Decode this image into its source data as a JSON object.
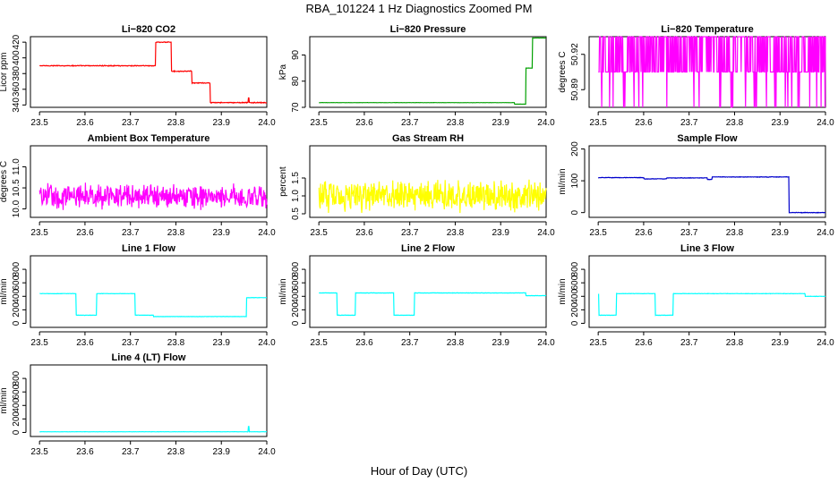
{
  "figure": {
    "title": "RBA_101224  1 Hz Diagnostics Zoomed PM",
    "xlabel": "Hour of Day (UTC)"
  },
  "chart_data": [
    {
      "type": "line",
      "title": "Li−820 CO2",
      "ylabel": "Licor ppm",
      "color": "#ff0000",
      "xlim": [
        23.48,
        24.0
      ],
      "ylim": [
        337,
        427
      ],
      "xticks": [
        "23.5",
        "23.6",
        "23.7",
        "23.8",
        "23.9",
        "24.0"
      ],
      "yticks": [
        {
          "v": 340,
          "label": "340"
        },
        {
          "v": 360,
          "label": "360"
        },
        {
          "v": 380,
          "label": "380"
        },
        {
          "v": 400,
          "label": "400"
        },
        {
          "v": 420,
          "label": "420"
        }
      ],
      "segments": [
        [
          23.5,
          23.755,
          390
        ],
        [
          23.755,
          23.79,
          420
        ],
        [
          23.79,
          23.835,
          383
        ],
        [
          23.835,
          23.875,
          368
        ],
        [
          23.875,
          24.0,
          343
        ]
      ],
      "noise": 0.6,
      "spikes": [
        [
          23.96,
          349
        ]
      ]
    },
    {
      "type": "line",
      "title": "Li−820 Pressure",
      "ylabel": "kPa",
      "color": "#00a000",
      "xlim": [
        23.48,
        24.0
      ],
      "ylim": [
        70,
        97
      ],
      "xticks": [
        "23.5",
        "23.6",
        "23.7",
        "23.8",
        "23.9",
        "24.0"
      ],
      "yticks": [
        {
          "v": 70,
          "label": "70"
        },
        {
          "v": 80,
          "label": "80"
        },
        {
          "v": 90,
          "label": "90"
        }
      ],
      "segments": [
        [
          23.5,
          23.93,
          71.8
        ],
        [
          23.93,
          23.955,
          71.2
        ],
        [
          23.955,
          23.97,
          85
        ],
        [
          23.97,
          24.0,
          96.5
        ]
      ],
      "noise": 0.05,
      "spikes": []
    },
    {
      "type": "line",
      "title": "Li−820 Temperature",
      "ylabel": "degrees C",
      "color": "#ff00ff",
      "xlim": [
        23.48,
        24.0
      ],
      "ylim": [
        50.875,
        50.935
      ],
      "xticks": [
        "23.5",
        "23.6",
        "23.7",
        "23.8",
        "23.9",
        "24.0"
      ],
      "yticks": [
        {
          "v": 50.89,
          "label": "50.89"
        },
        {
          "v": 50.92,
          "label": "50.92"
        }
      ],
      "digital": [
        50.905,
        50.935,
        50.875
      ],
      "noise": 0,
      "spikes": []
    },
    {
      "type": "line",
      "title": "Ambient Box Temperature",
      "ylabel": "degrees C",
      "color": "#ff00ff",
      "xlim": [
        23.48,
        24.0
      ],
      "ylim": [
        9.8,
        11.5
      ],
      "xticks": [
        "23.5",
        "23.6",
        "23.7",
        "23.8",
        "23.9",
        "24.0"
      ],
      "yticks": [
        {
          "v": 10.0,
          "label": "10.0"
        },
        {
          "v": 10.5,
          "label": "10.5"
        },
        {
          "v": 11.0,
          "label": "11.0"
        }
      ],
      "segments": [
        [
          23.5,
          24.0,
          10.3
        ]
      ],
      "noise": 0.35,
      "spikes": []
    },
    {
      "type": "line",
      "title": "Gas Stream RH",
      "ylabel": "percent",
      "color": "#ffff00",
      "xlim": [
        23.48,
        24.0
      ],
      "ylim": [
        0.4,
        2.4
      ],
      "xticks": [
        "23.5",
        "23.6",
        "23.7",
        "23.8",
        "23.9",
        "24.0"
      ],
      "yticks": [
        {
          "v": 0.5,
          "label": "0.5"
        },
        {
          "v": 1.0,
          "label": "1.0"
        },
        {
          "v": 1.5,
          "label": "1.5"
        }
      ],
      "segments": [
        [
          23.5,
          24.0,
          1.0
        ]
      ],
      "noise": 0.5,
      "spikes": []
    },
    {
      "type": "line",
      "title": "Sample Flow",
      "ylabel": "ml/min",
      "color": "#0000cc",
      "xlim": [
        23.48,
        24.0
      ],
      "ylim": [
        -15,
        210
      ],
      "xticks": [
        "23.5",
        "23.6",
        "23.7",
        "23.8",
        "23.9",
        "24.0"
      ],
      "yticks": [
        {
          "v": 0,
          "label": "0"
        },
        {
          "v": 100,
          "label": "100"
        },
        {
          "v": 200,
          "label": "200"
        }
      ],
      "segments": [
        [
          23.5,
          23.6,
          110
        ],
        [
          23.6,
          23.65,
          106
        ],
        [
          23.65,
          23.74,
          109
        ],
        [
          23.74,
          23.75,
          104
        ],
        [
          23.75,
          23.92,
          112
        ],
        [
          23.92,
          24.0,
          0
        ]
      ],
      "noise": 1.0,
      "spikes": []
    },
    {
      "type": "line",
      "title": "Line 1 Flow",
      "ylabel": "ml/min",
      "color": "#00ffff",
      "xlim": [
        23.48,
        24.0
      ],
      "ylim": [
        -60,
        1000
      ],
      "xticks": [
        "23.5",
        "23.6",
        "23.7",
        "23.8",
        "23.9",
        "24.0"
      ],
      "yticks": [
        {
          "v": 0,
          "label": "0"
        },
        {
          "v": 200,
          "label": "200"
        },
        {
          "v": 400,
          "label": "400"
        },
        {
          "v": 600,
          "label": "600"
        },
        {
          "v": 800,
          "label": "800"
        }
      ],
      "segments": [
        [
          23.5,
          23.58,
          440
        ],
        [
          23.58,
          23.625,
          120
        ],
        [
          23.625,
          23.71,
          440
        ],
        [
          23.71,
          23.75,
          120
        ],
        [
          23.75,
          23.955,
          100
        ],
        [
          23.955,
          24.0,
          380
        ]
      ],
      "noise": 3,
      "spikes": []
    },
    {
      "type": "line",
      "title": "Line 2 Flow",
      "ylabel": "ml/min",
      "color": "#00ffff",
      "xlim": [
        23.48,
        24.0
      ],
      "ylim": [
        -60,
        1000
      ],
      "xticks": [
        "23.5",
        "23.6",
        "23.7",
        "23.8",
        "23.9",
        "24.0"
      ],
      "yticks": [
        {
          "v": 0,
          "label": "0"
        },
        {
          "v": 200,
          "label": "200"
        },
        {
          "v": 400,
          "label": "400"
        },
        {
          "v": 600,
          "label": "600"
        },
        {
          "v": 800,
          "label": "800"
        }
      ],
      "segments": [
        [
          23.5,
          23.54,
          450
        ],
        [
          23.54,
          23.58,
          120
        ],
        [
          23.58,
          23.665,
          450
        ],
        [
          23.665,
          23.71,
          120
        ],
        [
          23.71,
          23.955,
          450
        ],
        [
          23.955,
          24.0,
          410
        ]
      ],
      "noise": 3,
      "spikes": []
    },
    {
      "type": "line",
      "title": "Line 3 Flow",
      "ylabel": "ml/min",
      "color": "#00ffff",
      "xlim": [
        23.48,
        24.0
      ],
      "ylim": [
        -60,
        1000
      ],
      "xticks": [
        "23.5",
        "23.6",
        "23.7",
        "23.8",
        "23.9",
        "24.0"
      ],
      "yticks": [
        {
          "v": 0,
          "label": "0"
        },
        {
          "v": 200,
          "label": "200"
        },
        {
          "v": 400,
          "label": "400"
        },
        {
          "v": 600,
          "label": "600"
        },
        {
          "v": 800,
          "label": "800"
        }
      ],
      "segments": [
        [
          23.5,
          23.54,
          120
        ],
        [
          23.54,
          23.625,
          440
        ],
        [
          23.625,
          23.665,
          120
        ],
        [
          23.665,
          23.955,
          440
        ],
        [
          23.955,
          24.0,
          400
        ]
      ],
      "noise": 3,
      "spikes": [
        [
          23.5,
          430
        ]
      ]
    },
    {
      "type": "line",
      "title": "Line 4 (LT) Flow",
      "ylabel": "ml/min",
      "color": "#00ffff",
      "xlim": [
        23.48,
        24.0
      ],
      "ylim": [
        -60,
        1000
      ],
      "xticks": [
        "23.5",
        "23.6",
        "23.7",
        "23.8",
        "23.9",
        "24.0"
      ],
      "yticks": [
        {
          "v": 0,
          "label": "0"
        },
        {
          "v": 200,
          "label": "200"
        },
        {
          "v": 400,
          "label": "400"
        },
        {
          "v": 600,
          "label": "600"
        },
        {
          "v": 800,
          "label": "800"
        }
      ],
      "segments": [
        [
          23.5,
          24.0,
          10
        ]
      ],
      "noise": 2,
      "spikes": [
        [
          23.96,
          90
        ]
      ]
    }
  ]
}
